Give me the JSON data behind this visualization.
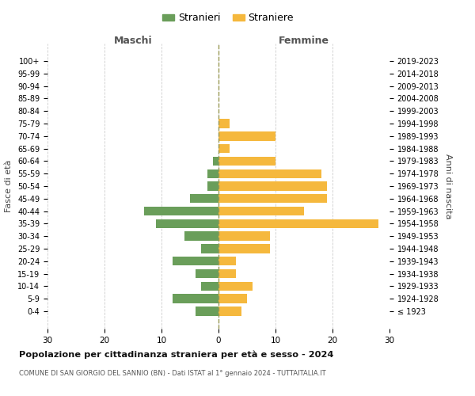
{
  "age_groups": [
    "100+",
    "95-99",
    "90-94",
    "85-89",
    "80-84",
    "75-79",
    "70-74",
    "65-69",
    "60-64",
    "55-59",
    "50-54",
    "45-49",
    "40-44",
    "35-39",
    "30-34",
    "25-29",
    "20-24",
    "15-19",
    "10-14",
    "5-9",
    "0-4"
  ],
  "birth_years": [
    "≤ 1923",
    "1924-1928",
    "1929-1933",
    "1934-1938",
    "1939-1943",
    "1944-1948",
    "1949-1953",
    "1954-1958",
    "1959-1963",
    "1964-1968",
    "1969-1973",
    "1974-1978",
    "1979-1983",
    "1984-1988",
    "1989-1993",
    "1994-1998",
    "1999-2003",
    "2004-2008",
    "2009-2013",
    "2014-2018",
    "2019-2023"
  ],
  "males": [
    0,
    0,
    0,
    0,
    0,
    0,
    0,
    0,
    1,
    2,
    2,
    5,
    13,
    11,
    6,
    3,
    8,
    4,
    3,
    8,
    4
  ],
  "females": [
    0,
    0,
    0,
    0,
    0,
    2,
    10,
    2,
    10,
    18,
    19,
    19,
    15,
    28,
    9,
    9,
    3,
    3,
    6,
    5,
    4
  ],
  "male_color": "#6a9e5a",
  "female_color": "#f5b83d",
  "background_color": "#ffffff",
  "grid_color": "#cccccc",
  "title": "Popolazione per cittadinanza straniera per età e sesso - 2024",
  "subtitle": "COMUNE DI SAN GIORGIO DEL SANNIO (BN) - Dati ISTAT al 1° gennaio 2024 - TUTTAITALIA.IT",
  "xlabel_left": "Maschi",
  "xlabel_right": "Femmine",
  "ylabel_left": "Fasce di età",
  "ylabel_right": "Anni di nascita",
  "legend_male": "Stranieri",
  "legend_female": "Straniere",
  "xlim": 30,
  "dashed_line_color": "#999955"
}
